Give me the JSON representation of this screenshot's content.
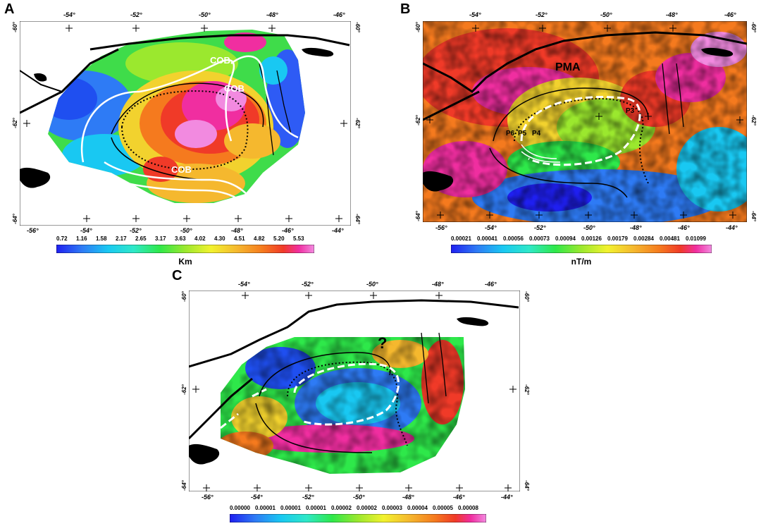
{
  "panels": [
    {
      "letter": "A",
      "top_lons": [
        "-54°",
        "-52°",
        "-50°",
        "-48°",
        "-46°"
      ],
      "bottom_lons": [
        "-56°",
        "-54°",
        "-52°",
        "-50°",
        "-48°",
        "-46°",
        "-44°"
      ],
      "left_lats": [
        "-60°",
        "-62°",
        "-64°"
      ],
      "right_lats": [
        "-60°",
        "-62°",
        "-64°"
      ],
      "labels": [
        "COB",
        "COB",
        "COB"
      ],
      "colorbar_ticks": [
        "0.72",
        "1.16",
        "1.58",
        "2.17",
        "2.65",
        "3.17",
        "3.63",
        "4.02",
        "4.30",
        "4.51",
        "4.82",
        "5.20",
        "5.53"
      ],
      "unit": "Km"
    },
    {
      "letter": "B",
      "top_lons": [
        "-54°",
        "-52°",
        "-50°",
        "-48°",
        "-46°"
      ],
      "bottom_lons": [
        "-56°",
        "-54°",
        "-52°",
        "-50°",
        "-48°",
        "-46°",
        "-44°"
      ],
      "left_lats": [
        "-60°",
        "-62°",
        "-64°"
      ],
      "right_lats": [
        "-60°",
        "-62°",
        "-64°"
      ],
      "labels": [
        "PMA",
        "P6",
        "P5",
        "P4",
        "P3"
      ],
      "colorbar_ticks": [
        "0.00021",
        "0.00041",
        "0.00056",
        "0.00073",
        "0.00094",
        "0.00126",
        "0.00179",
        "0.00284",
        "0.00481",
        "0.01099"
      ],
      "unit": "nT/m"
    },
    {
      "letter": "C",
      "top_lons": [
        "-54°",
        "-52°",
        "-50°",
        "-48°",
        "-46°"
      ],
      "bottom_lons": [
        "-56°",
        "-54°",
        "-52°",
        "-50°",
        "-48°",
        "-46°",
        "-44°"
      ],
      "left_lats": [
        "-60°",
        "-62°",
        "-64°"
      ],
      "right_lats": [
        "-60°",
        "-62°",
        "-64°"
      ],
      "labels": [
        "?"
      ],
      "colorbar_ticks": [
        "0.00000",
        "0.00001",
        "0.00001",
        "0.00001",
        "0.00002",
        "0.00002",
        "0.00003",
        "0.00004",
        "0.00005",
        "0.00008"
      ],
      "unit": ""
    }
  ],
  "colors": {
    "palette": [
      "#1f1ff0",
      "#2e7bf5",
      "#19c8f2",
      "#2ee8c8",
      "#2ee84a",
      "#9be82e",
      "#f2f22e",
      "#f5b82e",
      "#f57a1e",
      "#f03a28",
      "#e01e4a",
      "#f02ea0",
      "#f28ae0"
    ],
    "linework": "#000000",
    "white_lines": "#ffffff"
  }
}
